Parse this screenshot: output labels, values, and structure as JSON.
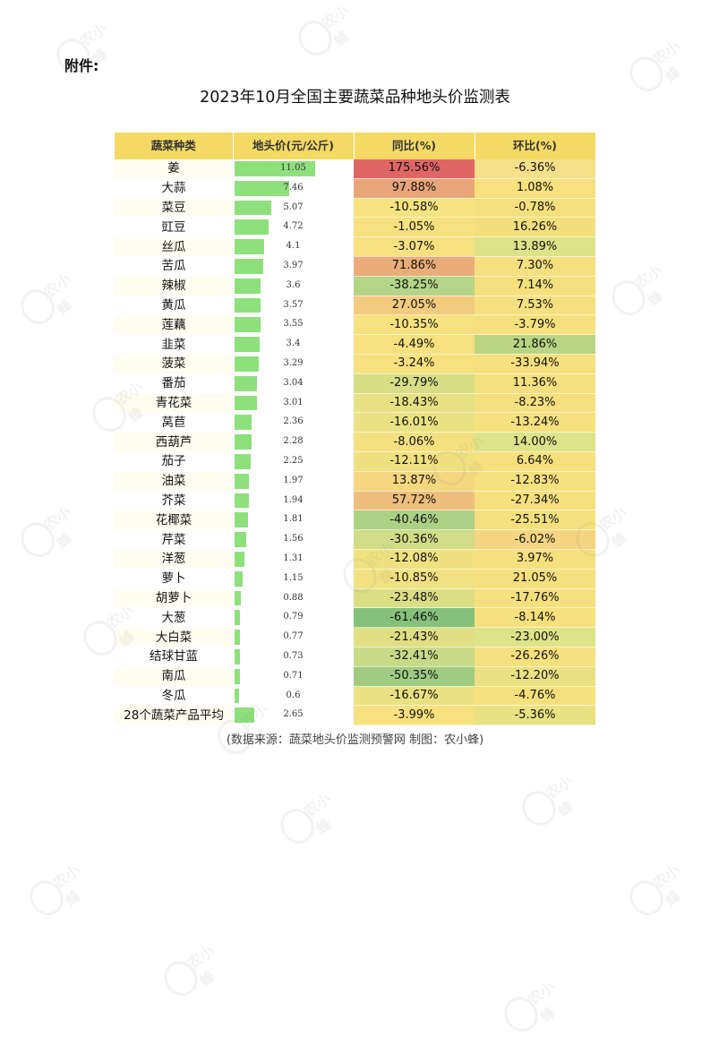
{
  "attachment_label": "附件:",
  "title": "2023年10月全国主要蔬菜品种地头价监测表",
  "headers": [
    "蔬菜种类",
    "地头价(元/公斤)",
    "同比(%)",
    "环比(%)"
  ],
  "max_price": 11.05,
  "rows": [
    {
      "name": "姜",
      "price": "11.05",
      "yoy": "175.56%",
      "mom": "-6.36%",
      "yoy_color": "#e06666",
      "mom_color": "#f5e08a"
    },
    {
      "name": "大蒜",
      "price": "7.46",
      "yoy": "97.88%",
      "mom": "1.08%",
      "yoy_color": "#e9a57a",
      "mom_color": "#f7e07e"
    },
    {
      "name": "菜豆",
      "price": "5.07",
      "yoy": "-10.58%",
      "mom": "-0.78%",
      "yoy_color": "#f6e37f",
      "mom_color": "#f6e07e"
    },
    {
      "name": "豇豆",
      "price": "4.72",
      "yoy": "-1.05%",
      "mom": "16.26%",
      "yoy_color": "#f7e07e",
      "mom_color": "#f3e07c"
    },
    {
      "name": "丝瓜",
      "price": "4.1",
      "yoy": "-3.07%",
      "mom": "13.89%",
      "yoy_color": "#f7e07e",
      "mom_color": "#dde389"
    },
    {
      "name": "苦瓜",
      "price": "3.97",
      "yoy": "71.86%",
      "mom": "7.30%",
      "yoy_color": "#eaad79",
      "mom_color": "#f6e07e"
    },
    {
      "name": "辣椒",
      "price": "3.6",
      "yoy": "-38.25%",
      "mom": "7.14%",
      "yoy_color": "#b4d487",
      "mom_color": "#f6e07e"
    },
    {
      "name": "黄瓜",
      "price": "3.57",
      "yoy": "27.05%",
      "mom": "7.53%",
      "yoy_color": "#f2cb7e",
      "mom_color": "#f6e07e"
    },
    {
      "name": "莲藕",
      "price": "3.55",
      "yoy": "-10.35%",
      "mom": "-3.79%",
      "yoy_color": "#f5e27f",
      "mom_color": "#f6e07e"
    },
    {
      "name": "韭菜",
      "price": "3.4",
      "yoy": "-4.49%",
      "mom": "21.86%",
      "yoy_color": "#f7e07e",
      "mom_color": "#b9d584"
    },
    {
      "name": "菠菜",
      "price": "3.29",
      "yoy": "-3.24%",
      "mom": "-33.94%",
      "yoy_color": "#f7e07e",
      "mom_color": "#f6e07e"
    },
    {
      "name": "番茄",
      "price": "3.04",
      "yoy": "-29.79%",
      "mom": "11.36%",
      "yoy_color": "#d6de86",
      "mom_color": "#f6e07e"
    },
    {
      "name": "青花菜",
      "price": "3.01",
      "yoy": "-18.43%",
      "mom": "-8.23%",
      "yoy_color": "#e6e183",
      "mom_color": "#f6e07e"
    },
    {
      "name": "莴苣",
      "price": "2.36",
      "yoy": "-16.01%",
      "mom": "-13.24%",
      "yoy_color": "#eae282",
      "mom_color": "#f6e07e"
    },
    {
      "name": "西葫芦",
      "price": "2.28",
      "yoy": "-8.06%",
      "mom": "14.00%",
      "yoy_color": "#f4e07f",
      "mom_color": "#dde389"
    },
    {
      "name": "茄子",
      "price": "2.25",
      "yoy": "-12.11%",
      "mom": "6.64%",
      "yoy_color": "#f0e180",
      "mom_color": "#f6e07e"
    },
    {
      "name": "油菜",
      "price": "1.97",
      "yoy": "13.87%",
      "mom": "-12.83%",
      "yoy_color": "#f5d780",
      "mom_color": "#f6e07e"
    },
    {
      "name": "芥菜",
      "price": "1.94",
      "yoy": "57.72%",
      "mom": "-27.34%",
      "yoy_color": "#eebe7c",
      "mom_color": "#f6e07e"
    },
    {
      "name": "花椰菜",
      "price": "1.81",
      "yoy": "-40.46%",
      "mom": "-25.51%",
      "yoy_color": "#abd185",
      "mom_color": "#f6e07e"
    },
    {
      "name": "芹菜",
      "price": "1.56",
      "yoy": "-30.36%",
      "mom": "-6.02%",
      "yoy_color": "#d1dc86",
      "mom_color": "#f5d581"
    },
    {
      "name": "洋葱",
      "price": "1.31",
      "yoy": "-12.08%",
      "mom": "3.97%",
      "yoy_color": "#f0e180",
      "mom_color": "#f6e07e"
    },
    {
      "name": "萝卜",
      "price": "1.15",
      "yoy": "-10.85%",
      "mom": "21.05%",
      "yoy_color": "#f2e180",
      "mom_color": "#f6e07e"
    },
    {
      "name": "胡萝卜",
      "price": "0.88",
      "yoy": "-23.48%",
      "mom": "-17.76%",
      "yoy_color": "#dcde85",
      "mom_color": "#f6e07e"
    },
    {
      "name": "大葱",
      "price": "0.79",
      "yoy": "-61.46%",
      "mom": "-8.14%",
      "yoy_color": "#86c17b",
      "mom_color": "#f6e07e"
    },
    {
      "name": "大白菜",
      "price": "0.77",
      "yoy": "-21.43%",
      "mom": "-23.00%",
      "yoy_color": "#e0df84",
      "mom_color": "#dde389"
    },
    {
      "name": "结球甘蓝",
      "price": "0.73",
      "yoy": "-32.41%",
      "mom": "-26.26%",
      "yoy_color": "#c9da86",
      "mom_color": "#f6e07e"
    },
    {
      "name": "南瓜",
      "price": "0.71",
      "yoy": "-50.35%",
      "mom": "-12.20%",
      "yoy_color": "#9fcc82",
      "mom_color": "#ebe182"
    },
    {
      "name": "冬瓜",
      "price": "0.6",
      "yoy": "-16.67%",
      "mom": "-4.76%",
      "yoy_color": "#eae282",
      "mom_color": "#f6e07e"
    },
    {
      "name": "28个蔬菜产品平均",
      "price": "2.65",
      "yoy": "-3.99%",
      "mom": "-5.36%",
      "yoy_color": "#f7e07e",
      "mom_color": "#e8e283"
    }
  ],
  "source_note": "(数据来源：蔬菜地头价监测预警网    制图：农小蜂)",
  "watermark_text": "农小蜂",
  "bar_color": "#8ee07c",
  "header_color": "#f4d964"
}
